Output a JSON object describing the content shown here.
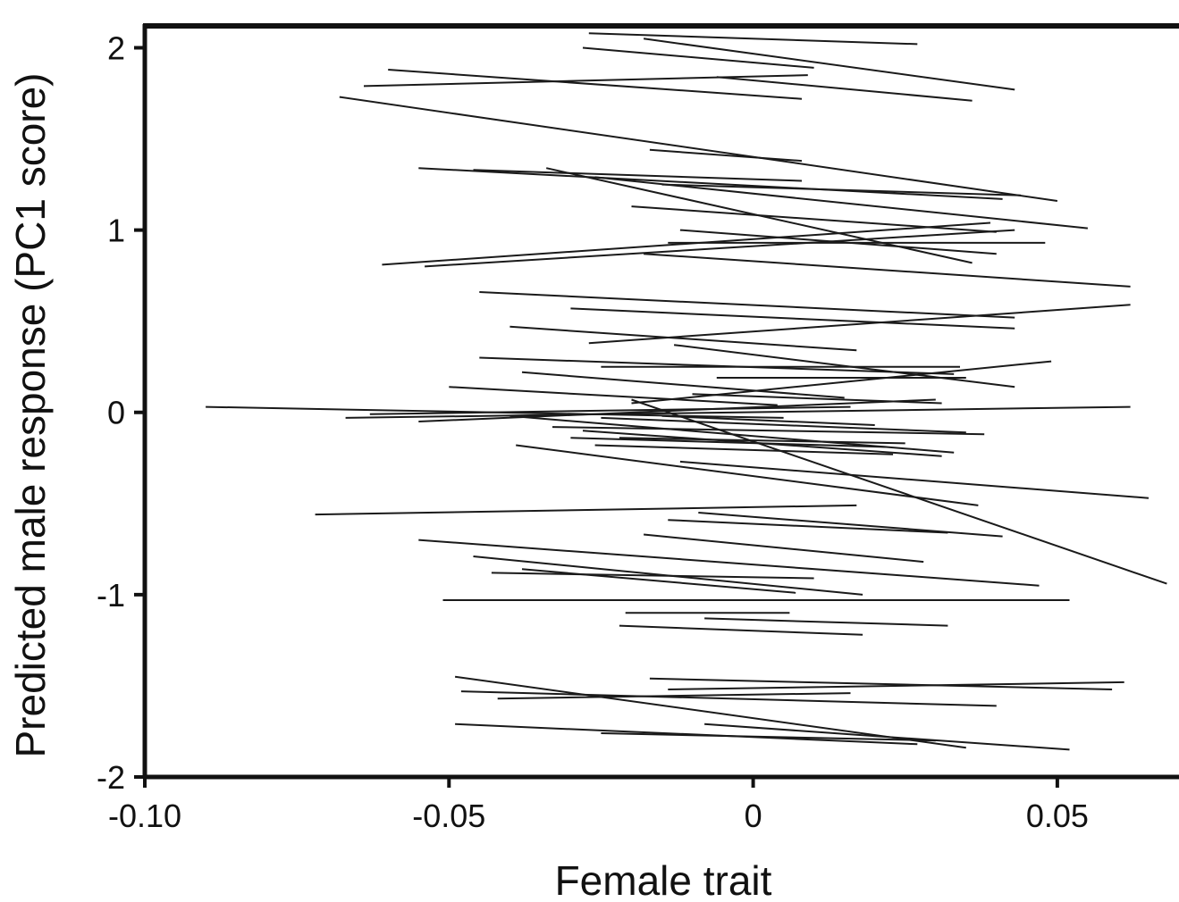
{
  "chart_data": {
    "type": "line",
    "xlabel": "Female trait",
    "ylabel": "Predicted male response (PC1 score)",
    "xlim": [
      -0.1,
      0.07
    ],
    "ylim": [
      -2,
      2.12
    ],
    "x_ticks": [
      -0.1,
      -0.05,
      0,
      0.05
    ],
    "x_tick_labels": [
      "-0.10",
      "-0.05",
      "0",
      "0.05"
    ],
    "y_ticks": [
      2,
      1,
      0,
      -1,
      -2
    ],
    "y_tick_labels": [
      "2",
      "1",
      "0",
      "-1",
      "-2"
    ],
    "grid": false,
    "line_color": "#1a1a1a",
    "segments": [
      {
        "x": [
          -0.027,
          0.027
        ],
        "y": [
          2.08,
          2.02
        ]
      },
      {
        "x": [
          -0.018,
          0.043
        ],
        "y": [
          2.05,
          1.77
        ]
      },
      {
        "x": [
          -0.028,
          0.01
        ],
        "y": [
          2.0,
          1.89
        ]
      },
      {
        "x": [
          -0.006,
          0.036
        ],
        "y": [
          1.84,
          1.71
        ]
      },
      {
        "x": [
          -0.06,
          0.008
        ],
        "y": [
          1.88,
          1.72
        ]
      },
      {
        "x": [
          -0.064,
          0.009
        ],
        "y": [
          1.79,
          1.85
        ]
      },
      {
        "x": [
          -0.068,
          0.05
        ],
        "y": [
          1.73,
          1.16
        ]
      },
      {
        "x": [
          -0.017,
          0.008
        ],
        "y": [
          1.44,
          1.38
        ]
      },
      {
        "x": [
          -0.055,
          0.041
        ],
        "y": [
          1.34,
          1.17
        ]
      },
      {
        "x": [
          -0.046,
          0.008
        ],
        "y": [
          1.33,
          1.27
        ]
      },
      {
        "x": [
          -0.034,
          0.036
        ],
        "y": [
          1.34,
          0.82
        ]
      },
      {
        "x": [
          -0.026,
          0.055
        ],
        "y": [
          1.29,
          1.01
        ]
      },
      {
        "x": [
          -0.02,
          0.04
        ],
        "y": [
          1.13,
          0.99
        ]
      },
      {
        "x": [
          -0.015,
          0.044
        ],
        "y": [
          1.25,
          1.19
        ]
      },
      {
        "x": [
          -0.012,
          0.04
        ],
        "y": [
          1.0,
          0.87
        ]
      },
      {
        "x": [
          -0.061,
          0.039
        ],
        "y": [
          0.81,
          1.04
        ]
      },
      {
        "x": [
          -0.054,
          0.043
        ],
        "y": [
          0.8,
          1.0
        ]
      },
      {
        "x": [
          -0.014,
          0.048
        ],
        "y": [
          0.93,
          0.93
        ]
      },
      {
        "x": [
          -0.018,
          0.062
        ],
        "y": [
          0.87,
          0.69
        ]
      },
      {
        "x": [
          -0.045,
          0.043
        ],
        "y": [
          0.66,
          0.52
        ]
      },
      {
        "x": [
          -0.03,
          0.043
        ],
        "y": [
          0.57,
          0.46
        ]
      },
      {
        "x": [
          -0.027,
          0.062
        ],
        "y": [
          0.38,
          0.59
        ]
      },
      {
        "x": [
          -0.04,
          0.017
        ],
        "y": [
          0.47,
          0.34
        ]
      },
      {
        "x": [
          -0.013,
          0.043
        ],
        "y": [
          0.37,
          0.14
        ]
      },
      {
        "x": [
          -0.045,
          0.033
        ],
        "y": [
          0.3,
          0.21
        ]
      },
      {
        "x": [
          -0.025,
          0.034
        ],
        "y": [
          0.25,
          0.25
        ]
      },
      {
        "x": [
          -0.006,
          0.035
        ],
        "y": [
          0.19,
          0.19
        ]
      },
      {
        "x": [
          -0.038,
          0.015
        ],
        "y": [
          0.22,
          0.08
        ]
      },
      {
        "x": [
          -0.05,
          0.004
        ],
        "y": [
          0.14,
          0.04
        ]
      },
      {
        "x": [
          -0.09,
          0.005
        ],
        "y": [
          0.03,
          -0.03
        ]
      },
      {
        "x": [
          -0.067,
          0.062
        ],
        "y": [
          -0.03,
          0.03
        ]
      },
      {
        "x": [
          -0.063,
          0.016
        ],
        "y": [
          -0.01,
          0.03
        ]
      },
      {
        "x": [
          -0.055,
          0.03
        ],
        "y": [
          -0.05,
          0.07
        ]
      },
      {
        "x": [
          -0.04,
          0.033
        ],
        "y": [
          -0.02,
          -0.22
        ]
      },
      {
        "x": [
          -0.03,
          0.022
        ],
        "y": [
          -0.14,
          -0.19
        ]
      },
      {
        "x": [
          -0.025,
          0.035
        ],
        "y": [
          -0.03,
          -0.11
        ]
      },
      {
        "x": [
          -0.02,
          0.049
        ],
        "y": [
          0.05,
          0.28
        ]
      },
      {
        "x": [
          -0.015,
          0.02
        ],
        "y": [
          -0.02,
          -0.07
        ]
      },
      {
        "x": [
          -0.02,
          0.068
        ],
        "y": [
          0.07,
          -0.94
        ]
      },
      {
        "x": [
          -0.01,
          0.031
        ],
        "y": [
          0.1,
          0.05
        ]
      },
      {
        "x": [
          -0.026,
          0.023
        ],
        "y": [
          -0.18,
          -0.23
        ]
      },
      {
        "x": [
          -0.022,
          0.025
        ],
        "y": [
          -0.14,
          -0.17
        ]
      },
      {
        "x": [
          -0.028,
          0.031
        ],
        "y": [
          -0.1,
          -0.24
        ]
      },
      {
        "x": [
          -0.033,
          0.038
        ],
        "y": [
          -0.08,
          -0.12
        ]
      },
      {
        "x": [
          -0.039,
          0.037
        ],
        "y": [
          -0.18,
          -0.51
        ]
      },
      {
        "x": [
          -0.012,
          0.065
        ],
        "y": [
          -0.27,
          -0.47
        ]
      },
      {
        "x": [
          -0.072,
          0.017
        ],
        "y": [
          -0.56,
          -0.51
        ]
      },
      {
        "x": [
          -0.009,
          0.041
        ],
        "y": [
          -0.55,
          -0.68
        ]
      },
      {
        "x": [
          -0.014,
          0.032
        ],
        "y": [
          -0.59,
          -0.66
        ]
      },
      {
        "x": [
          -0.018,
          0.028
        ],
        "y": [
          -0.67,
          -0.82
        ]
      },
      {
        "x": [
          -0.055,
          0.047
        ],
        "y": [
          -0.7,
          -0.95
        ]
      },
      {
        "x": [
          -0.046,
          0.018
        ],
        "y": [
          -0.79,
          -1.0
        ]
      },
      {
        "x": [
          -0.043,
          0.01
        ],
        "y": [
          -0.88,
          -0.91
        ]
      },
      {
        "x": [
          -0.038,
          0.007
        ],
        "y": [
          -0.86,
          -0.99
        ]
      },
      {
        "x": [
          -0.051,
          0.052
        ],
        "y": [
          -1.03,
          -1.03
        ]
      },
      {
        "x": [
          -0.021,
          0.006
        ],
        "y": [
          -1.1,
          -1.1
        ]
      },
      {
        "x": [
          -0.008,
          0.032
        ],
        "y": [
          -1.13,
          -1.17
        ]
      },
      {
        "x": [
          -0.022,
          0.018
        ],
        "y": [
          -1.17,
          -1.22
        ]
      },
      {
        "x": [
          -0.049,
          0.035
        ],
        "y": [
          -1.45,
          -1.84
        ]
      },
      {
        "x": [
          -0.017,
          0.059
        ],
        "y": [
          -1.46,
          -1.52
        ]
      },
      {
        "x": [
          -0.014,
          0.061
        ],
        "y": [
          -1.52,
          -1.48
        ]
      },
      {
        "x": [
          -0.048,
          0.04
        ],
        "y": [
          -1.53,
          -1.61
        ]
      },
      {
        "x": [
          -0.042,
          0.016
        ],
        "y": [
          -1.57,
          -1.54
        ]
      },
      {
        "x": [
          -0.049,
          0.027
        ],
        "y": [
          -1.71,
          -1.82
        ]
      },
      {
        "x": [
          -0.008,
          0.052
        ],
        "y": [
          -1.71,
          -1.85
        ]
      },
      {
        "x": [
          -0.025,
          0.03
        ],
        "y": [
          -1.76,
          -1.8
        ]
      }
    ]
  }
}
